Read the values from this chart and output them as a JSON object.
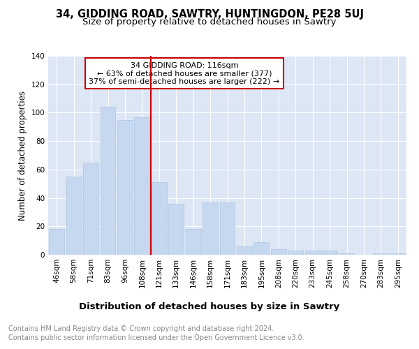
{
  "title": "34, GIDDING ROAD, SAWTRY, HUNTINGDON, PE28 5UJ",
  "subtitle": "Size of property relative to detached houses in Sawtry",
  "xlabel": "Distribution of detached houses by size in Sawtry",
  "ylabel": "Number of detached properties",
  "categories": [
    "46sqm",
    "58sqm",
    "71sqm",
    "83sqm",
    "96sqm",
    "108sqm",
    "121sqm",
    "133sqm",
    "146sqm",
    "158sqm",
    "171sqm",
    "183sqm",
    "195sqm",
    "208sqm",
    "220sqm",
    "233sqm",
    "245sqm",
    "258sqm",
    "270sqm",
    "283sqm",
    "295sqm"
  ],
  "values": [
    18,
    55,
    65,
    104,
    95,
    97,
    51,
    36,
    18,
    37,
    37,
    6,
    9,
    4,
    3,
    3,
    3,
    1,
    0,
    1,
    1
  ],
  "bar_color": "#c5d8f0",
  "bar_edge_color": "#adc4e0",
  "vline_color": "#cc0000",
  "annotation_box_text": "34 GIDDING ROAD: 116sqm\n← 63% of detached houses are smaller (377)\n37% of semi-detached houses are larger (222) →",
  "annotation_box_color": "#ffffff",
  "annotation_box_edge_color": "#cc0000",
  "ylim": [
    0,
    140
  ],
  "yticks": [
    0,
    20,
    40,
    60,
    80,
    100,
    120,
    140
  ],
  "plot_bg_color": "#dce6f5",
  "grid_color": "#ffffff",
  "footer_line1": "Contains HM Land Registry data © Crown copyright and database right 2024.",
  "footer_line2": "Contains public sector information licensed under the Open Government Licence v3.0.",
  "title_fontsize": 10.5,
  "subtitle_fontsize": 9.5,
  "xlabel_fontsize": 9.5,
  "ylabel_fontsize": 8.5,
  "tick_fontsize": 7.5,
  "annotation_fontsize": 8,
  "footer_fontsize": 7
}
